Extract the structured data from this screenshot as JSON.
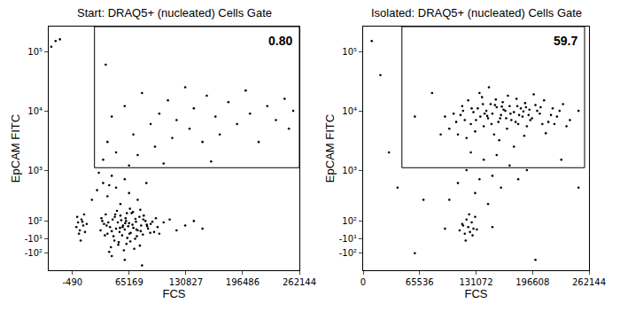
{
  "chart_data": [
    {
      "type": "scatter",
      "title": "Start: DRAQ5+ (nucleated) Cells Gate",
      "x_label": "FCS",
      "y_label": "EpCAM FITC",
      "color": "#000000",
      "marker": "dot",
      "grid": false,
      "x": [
        32000,
        36000,
        40000,
        43000,
        46000,
        48000,
        50000,
        52000,
        54000,
        55000,
        57000,
        58000,
        60000,
        61000,
        62000,
        64000,
        65000,
        67000,
        68000,
        70000,
        72000,
        73000,
        75000,
        77000,
        79000,
        81000,
        84000,
        87000,
        90000,
        94000,
        38000,
        44000,
        51000,
        59000,
        66000,
        71000,
        78000,
        34000,
        47000,
        56000,
        63000,
        69000,
        82000,
        98000,
        105000,
        112000,
        120000,
        130000,
        140000,
        150000,
        33000,
        37000,
        41000,
        45000,
        49000,
        53000,
        57500,
        61500,
        65500,
        69500,
        73500,
        77500,
        81500,
        85500,
        89500,
        42000,
        48500,
        54500,
        60500,
        66500,
        72500,
        78500,
        86000,
        92000,
        100000,
        39000,
        52500,
        62500,
        74000,
        96000,
        4000,
        6000,
        8000,
        10000,
        12000,
        14000,
        16000,
        5000,
        9000,
        13000,
        7000,
        11000,
        22000,
        28000,
        35000,
        40000,
        45000,
        50000,
        55000,
        60000,
        65000,
        30000,
        42000,
        75000,
        85000,
        -20000,
        -15000,
        -25000,
        60000,
        80000,
        45000,
        35000,
        40000,
        45000,
        50000,
        60000,
        70000,
        75000,
        80000,
        90000,
        95000,
        100000,
        110000,
        115000,
        120000,
        130000,
        135000,
        140000,
        150000,
        155000,
        165000,
        170000,
        180000,
        190000,
        200000,
        205000,
        215000,
        225000,
        235000,
        245000,
        250000,
        255000,
        38000,
        65000,
        105000,
        160000
      ],
      "values": [
        40,
        80,
        20,
        60,
        110,
        -20,
        50,
        90,
        30,
        140,
        10,
        70,
        45,
        120,
        -40,
        65,
        85,
        25,
        160,
        55,
        -10,
        95,
        40,
        130,
        70,
        15,
        100,
        50,
        80,
        30,
        150,
        -60,
        180,
        -80,
        200,
        -70,
        190,
        100,
        5,
        105,
        -5,
        75,
        140,
        60,
        90,
        110,
        40,
        70,
        100,
        50,
        120,
        10,
        90,
        35,
        150,
        -30,
        60,
        100,
        20,
        170,
        45,
        -50,
        110,
        75,
        25,
        -90,
        130,
        55,
        85,
        -25,
        115,
        35,
        65,
        95,
        20,
        70,
        -45,
        160,
        5,
        120,
        60,
        90,
        40,
        110,
        70,
        30,
        80,
        130,
        -20,
        150,
        20,
        95,
        300,
        450,
        600,
        350,
        800,
        500,
        250,
        700,
        400,
        900,
        550,
        300,
        600,
        150000,
        160000,
        120000,
        -150,
        -200,
        -120,
        1500,
        3000,
        8000,
        2000,
        12000,
        4000,
        1800,
        20000,
        6000,
        2500,
        9000,
        15000,
        3500,
        7000,
        25000,
        5000,
        11000,
        3000,
        18000,
        8000,
        4000,
        14000,
        6000,
        22000,
        9000,
        3000,
        12000,
        7000,
        16000,
        5000,
        10000,
        60000,
        1200,
        1300,
        1400
      ],
      "xlim": [
        -28000,
        262144
      ],
      "xticks": [
        -490,
        65169,
        130827,
        196486,
        262144
      ],
      "ylim": [
        -250,
        262144
      ],
      "yticks": [
        {
          "value": 100000,
          "label": "10⁵"
        },
        {
          "value": 10000,
          "label": "10⁴"
        },
        {
          "value": 1000,
          "label": "10³"
        },
        {
          "value": 100,
          "label": "10²"
        },
        {
          "value": -10,
          "label": "-10¹"
        },
        {
          "value": -100,
          "label": "-10²"
        }
      ],
      "gate": {
        "xlim": [
          25000,
          262144
        ],
        "ylim": [
          1100,
          262144
        ],
        "percent": {
          "value": 0.8,
          "label": "0.80"
        }
      }
    },
    {
      "type": "scatter",
      "title": "Isolated: DRAQ5+ (nucleated) Cells Gate",
      "x_label": "FCS",
      "y_label": "EpCAM FITC",
      "color": "#000000",
      "marker": "dot",
      "grid": false,
      "x": [
        100000,
        105000,
        110000,
        115000,
        118000,
        122000,
        125000,
        128000,
        130000,
        133000,
        136000,
        138000,
        140000,
        143000,
        145000,
        148000,
        150000,
        152000,
        155000,
        157000,
        160000,
        162000,
        165000,
        167000,
        170000,
        172000,
        175000,
        178000,
        180000,
        183000,
        185000,
        188000,
        190000,
        193000,
        196000,
        200000,
        205000,
        210000,
        215000,
        220000,
        225000,
        232000,
        240000,
        120000,
        135000,
        158000,
        168000,
        187000,
        198000,
        212000,
        95000,
        90000,
        250000,
        146000,
        175000,
        108000,
        113000,
        126000,
        131000,
        141000,
        149000,
        153000,
        159000,
        163000,
        171000,
        177000,
        181000,
        189000,
        194000,
        202000,
        208000,
        218000,
        228000,
        236000,
        116000,
        139000,
        154000,
        166000,
        179000,
        192000,
        206000,
        222000,
        144000,
        161000,
        186000,
        112000,
        115000,
        118000,
        120000,
        122000,
        124000,
        126000,
        128000,
        130000,
        119000,
        123000,
        127000,
        116000,
        132000,
        100000,
        110000,
        120000,
        130000,
        140000,
        150000,
        160000,
        170000,
        180000,
        125000,
        145000,
        190000,
        135000,
        155000,
        20000,
        30000,
        40000,
        60000,
        70000,
        80000,
        250000,
        230000,
        60000,
        200000,
        95000,
        150000,
        10000
      ],
      "values": [
        5000,
        9000,
        4000,
        12000,
        7000,
        15000,
        6000,
        9500,
        4500,
        11000,
        8000,
        17000,
        5500,
        10000,
        7500,
        13000,
        9000,
        4000,
        11500,
        6500,
        8500,
        14000,
        10000,
        5000,
        12000,
        7000,
        9500,
        16000,
        6000,
        11000,
        8000,
        13500,
        5500,
        10500,
        7500,
        12500,
        9000,
        15000,
        6500,
        11000,
        8000,
        13000,
        7000,
        3500,
        20000,
        3200,
        18000,
        3800,
        19000,
        4200,
        8000,
        4000,
        10000,
        25000,
        2500,
        6500,
        8500,
        11000,
        7000,
        9000,
        6000,
        12500,
        7500,
        10500,
        9000,
        6500,
        8500,
        11500,
        7000,
        10000,
        6000,
        8500,
        10000,
        5500,
        10000,
        13000,
        15500,
        7500,
        12000,
        8500,
        11500,
        6000,
        8200,
        11800,
        9800,
        40,
        80,
        20,
        110,
        60,
        30,
        90,
        50,
        130,
        -20,
        150,
        10,
        70,
        45,
        300,
        600,
        1000,
        400,
        1500,
        800,
        500,
        1200,
        700,
        2000,
        250,
        1000,
        700,
        1800,
        40000,
        2000,
        500,
        8000,
        300,
        20000,
        500,
        1500,
        -100,
        -150,
        50,
        60,
        150000
      ],
      "xlim": [
        0,
        262144
      ],
      "xticks": [
        0,
        65536,
        131072,
        196608,
        262144
      ],
      "ylim": [
        -250,
        262144
      ],
      "yticks": [
        {
          "value": 100000,
          "label": "10⁵"
        },
        {
          "value": 10000,
          "label": "10⁴"
        },
        {
          "value": 1000,
          "label": "10³"
        },
        {
          "value": 100,
          "label": "10²"
        },
        {
          "value": -10,
          "label": "-10¹"
        },
        {
          "value": -100,
          "label": "-10²"
        }
      ],
      "gate": {
        "xlim": [
          45000,
          257000
        ],
        "ylim": [
          1100,
          262144
        ],
        "percent": 59.7
      }
    }
  ]
}
